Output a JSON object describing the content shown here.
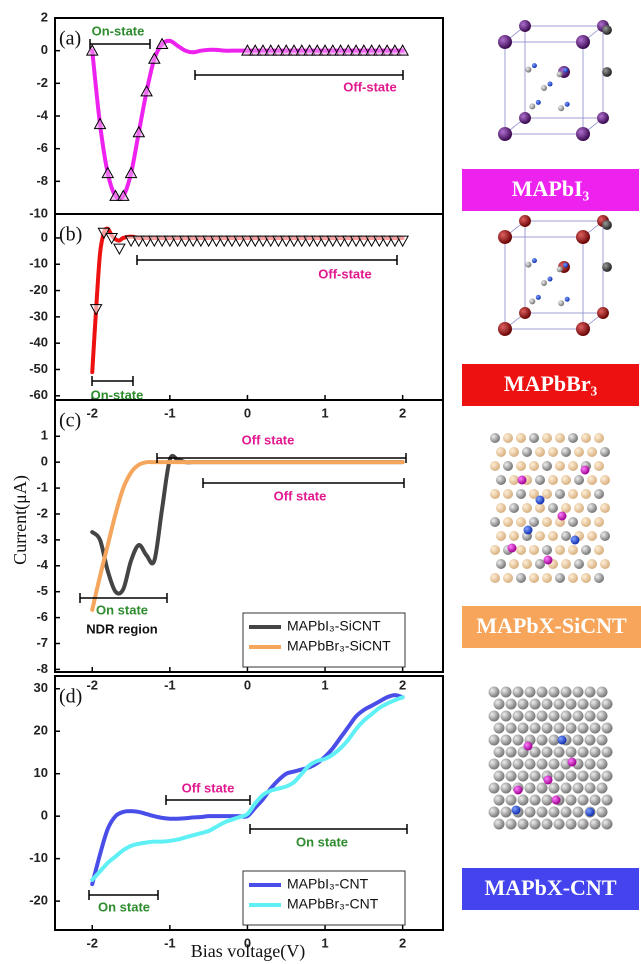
{
  "chart_data": [
    {
      "type": "line",
      "panel_label": "(a)",
      "xlim": [
        -2.48,
        2.52
      ],
      "ylim": [
        -10,
        2
      ],
      "yticks": [
        2,
        0,
        -2,
        -4,
        -6,
        -8,
        -10
      ],
      "x": [
        -2,
        -1.9,
        -1.8,
        -1.7,
        -1.6,
        -1.5,
        -1.4,
        -1.3,
        -1.2,
        -1.1,
        -1,
        -0.9,
        -0.8,
        -0.7,
        -0.6,
        -0.5,
        -0.4,
        -0.3,
        -0.2,
        -0.1,
        0,
        0.1,
        0.2,
        0.3,
        0.4,
        0.5,
        0.6,
        0.7,
        0.8,
        0.9,
        1,
        1.1,
        1.2,
        1.3,
        1.4,
        1.5,
        1.6,
        1.7,
        1.8,
        1.9,
        2
      ],
      "series": [
        {
          "color": "#ee22ee",
          "values": [
            0,
            -4.5,
            -7.5,
            -8.9,
            -8.9,
            -7.5,
            -5,
            -2.5,
            -0.5,
            0.4,
            0.6,
            0.3,
            0,
            -0.1,
            0,
            0.05,
            0.05,
            0,
            0,
            0,
            0,
            0,
            0,
            0,
            0,
            0,
            0,
            0,
            0,
            0,
            0,
            0,
            0,
            0,
            0,
            0,
            0,
            0,
            0,
            0,
            0
          ]
        },
        {
          "color": "#000000",
          "marker": "triangle-up",
          "marker_fill": "#f0a0f0",
          "values": [
            0,
            -4.5,
            -7.5,
            -8.9,
            -8.9,
            -7.5,
            -5,
            -2.5,
            -0.5,
            0.4,
            null,
            null,
            null,
            null,
            null,
            null,
            null,
            null,
            null,
            null,
            0,
            0,
            0,
            0,
            0,
            0,
            0,
            0,
            0,
            0,
            0,
            0,
            0,
            0,
            0,
            0,
            0,
            0,
            0,
            0,
            0
          ]
        }
      ],
      "annotations": [
        {
          "text": "On-state",
          "color": "#2e8b2e"
        },
        {
          "text": "Off-state",
          "color": "#e0198f"
        }
      ]
    },
    {
      "type": "line",
      "panel_label": "(b)",
      "xlim": [
        -2.48,
        2.52
      ],
      "ylim": [
        -61.6,
        9.1
      ],
      "yticks": [
        0,
        -10,
        -20,
        -30,
        -40,
        -50,
        -60
      ],
      "xticks": [
        -2,
        -1,
        0,
        1,
        2
      ],
      "x": [
        -2,
        -1.95,
        -1.9,
        -1.85,
        -1.8,
        -1.75,
        -1.7,
        -1.65,
        -1.6,
        -1.5,
        -1.4,
        -1.3,
        -1.2,
        -1.1,
        -1,
        -0.9,
        -0.8,
        -0.7,
        -0.6,
        -0.5,
        -0.4,
        -0.3,
        -0.2,
        -0.1,
        0,
        0.1,
        0.2,
        0.3,
        0.4,
        0.5,
        0.6,
        0.7,
        0.8,
        0.9,
        1,
        1.1,
        1.2,
        1.3,
        1.4,
        1.5,
        1.6,
        1.7,
        1.8,
        1.9,
        2
      ],
      "series": [
        {
          "color": "#ee1111",
          "values": [
            -51,
            -27,
            -6,
            2,
            3.5,
            1,
            -0.5,
            -1,
            0,
            0.5,
            0,
            0,
            0,
            0,
            0,
            0,
            0,
            0,
            0,
            0,
            0,
            0,
            0,
            0,
            0,
            0,
            0,
            0,
            0,
            0,
            0,
            0,
            0,
            0,
            0,
            0,
            0,
            0,
            0,
            0,
            0,
            0,
            0,
            0,
            0
          ]
        },
        {
          "color": "#000000",
          "marker": "triangle-down",
          "marker_fill": "#ffffff",
          "values": [
            null,
            -27,
            null,
            2,
            null,
            0,
            null,
            -4,
            null,
            -1,
            -1,
            -1,
            -1,
            -1,
            -1,
            -1,
            -1,
            -1,
            -1,
            -1,
            -1,
            -1,
            -1,
            -1,
            -1,
            -1,
            -1,
            -1,
            -1,
            -1,
            -1,
            -1,
            -1,
            -1,
            -1,
            -1,
            -1,
            -1,
            -1,
            -1,
            -1,
            -1,
            -1,
            -1,
            -1
          ]
        }
      ],
      "annotations": [
        {
          "text": "Off-state",
          "color": "#e0198f"
        },
        {
          "text": "On-state",
          "color": "#2e8b2e"
        }
      ]
    },
    {
      "type": "line",
      "panel_label": "(c)",
      "xlim": [
        -2.48,
        2.52
      ],
      "ylim": [
        -8.1,
        2.4
      ],
      "yticks": [
        1,
        0,
        -1,
        -2,
        -3,
        -4,
        -5,
        -6,
        -7,
        -8
      ],
      "xticks": [
        -2,
        -1,
        0,
        1,
        2
      ],
      "ylabel": "Current(μA)",
      "legend": "lower right",
      "x": [
        -2,
        -1.9,
        -1.8,
        -1.7,
        -1.6,
        -1.5,
        -1.4,
        -1.3,
        -1.2,
        -1.1,
        -1,
        -0.9,
        -0.8,
        -0.7,
        -0.6,
        -0.5,
        -0.4,
        -0.3,
        -0.2,
        -0.1,
        0,
        0.1,
        0.2,
        0.3,
        0.4,
        0.5,
        0.6,
        0.7,
        0.8,
        0.9,
        1,
        1.1,
        1.2,
        1.3,
        1.4,
        1.5,
        1.6,
        1.7,
        1.8,
        1.9,
        2
      ],
      "series": [
        {
          "name": "MAPbI₃-SiCNT",
          "color": "#444444",
          "values": [
            -2.7,
            -3.0,
            -4.2,
            -5.0,
            -4.9,
            -3.8,
            -3.2,
            -3.6,
            -3.8,
            -1.8,
            0.1,
            0.1,
            0,
            0,
            0,
            0,
            0,
            0,
            0,
            0,
            0,
            0,
            0,
            0,
            0,
            0,
            0,
            0,
            0,
            0,
            0,
            0,
            0,
            0,
            0,
            0,
            0,
            0,
            0,
            0,
            0
          ]
        },
        {
          "name": "MAPbBr₃-SiCNT",
          "color": "#f5a55c",
          "values": [
            -5.7,
            -4.4,
            -3.2,
            -2.0,
            -1.0,
            -0.4,
            -0.1,
            0,
            0,
            0,
            0,
            0,
            0,
            0,
            0,
            0,
            0,
            0,
            0,
            0,
            0,
            0,
            0,
            0,
            0,
            0,
            0,
            0,
            0,
            0,
            0,
            0,
            0,
            0,
            0,
            0,
            0,
            0,
            0,
            0,
            0
          ]
        }
      ],
      "annotations": [
        {
          "text": "Off state",
          "color": "#e0198f"
        },
        {
          "text": "Off state",
          "color": "#e0198f"
        },
        {
          "text": "On state",
          "color": "#2e8b2e"
        },
        {
          "text": "NDR region",
          "color": "#111111"
        }
      ]
    },
    {
      "type": "line",
      "panel_label": "(d)",
      "xlim": [
        -2.48,
        2.52
      ],
      "ylim": [
        -26.8,
        33
      ],
      "yticks": [
        30,
        20,
        10,
        0,
        -10,
        -20
      ],
      "xticks": [
        -2,
        -1,
        0,
        1,
        2
      ],
      "xlabel": "Bias voltage(V)",
      "legend": "lower right",
      "x": [
        -2,
        -1.9,
        -1.8,
        -1.7,
        -1.6,
        -1.5,
        -1.4,
        -1.3,
        -1.2,
        -1.1,
        -1,
        -0.9,
        -0.8,
        -0.7,
        -0.6,
        -0.5,
        -0.4,
        -0.3,
        -0.2,
        -0.1,
        0,
        0.1,
        0.2,
        0.3,
        0.4,
        0.5,
        0.6,
        0.7,
        0.8,
        0.9,
        1,
        1.1,
        1.2,
        1.3,
        1.4,
        1.5,
        1.6,
        1.7,
        1.8,
        1.9,
        2
      ],
      "series": [
        {
          "name": "MAPbI₃-CNT",
          "color": "#4a4ee8",
          "values": [
            -16,
            -9,
            -3,
            0,
            1,
            1.2,
            1,
            0.5,
            0,
            -0.4,
            -0.6,
            -0.6,
            -0.5,
            -0.3,
            -0.2,
            0,
            0,
            0,
            0,
            0,
            0,
            2,
            4,
            6.5,
            8.5,
            10,
            10.5,
            11,
            11.5,
            12.5,
            14,
            16,
            18.5,
            21,
            23.5,
            25,
            26,
            27,
            28,
            28.5,
            28
          ]
        },
        {
          "name": "MAPbBr₃-CNT",
          "color": "#5ef0f5",
          "values": [
            -15,
            -13,
            -11,
            -9.5,
            -8,
            -7,
            -6.5,
            -6.2,
            -6,
            -6,
            -5.8,
            -5.5,
            -5,
            -4.5,
            -4,
            -3.5,
            -2.5,
            -1.5,
            -0.8,
            -0.2,
            0.5,
            3,
            5,
            6,
            6.5,
            7,
            8,
            10,
            12,
            13,
            13.5,
            14.5,
            16,
            18,
            20.5,
            22.5,
            24,
            25.5,
            26.5,
            27.3,
            28
          ]
        }
      ],
      "annotations": [
        {
          "text": "Off state",
          "color": "#e0198f"
        },
        {
          "text": "On state",
          "color": "#2e8b2e"
        },
        {
          "text": "On state",
          "color": "#2e8b2e"
        }
      ]
    }
  ],
  "materials": [
    {
      "label": "MAPbI₃",
      "color": "#ee22ee"
    },
    {
      "label": "MAPbBr₃",
      "color": "#ee1111"
    },
    {
      "label": "MAPbX-SiCNT",
      "color": "#f6a55a"
    },
    {
      "label": "MAPbX-CNT",
      "color": "#4444ee"
    }
  ]
}
